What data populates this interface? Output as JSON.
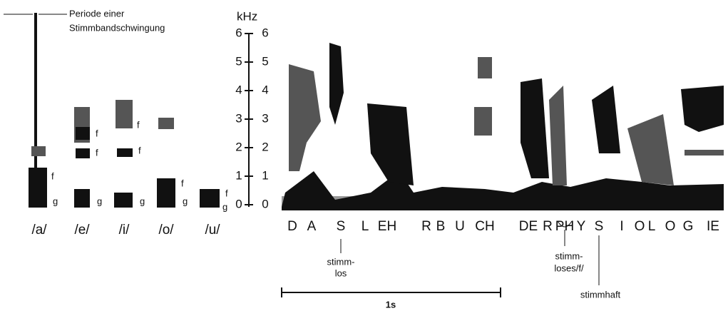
{
  "annotation": {
    "lines": [
      "Periode einer",
      "Stimmbandschwingung"
    ]
  },
  "axis": {
    "unit": "kHz",
    "ticks": [
      "0",
      "1",
      "2",
      "3",
      "4",
      "5",
      "6"
    ]
  },
  "vowels": {
    "labels": [
      "/a/",
      "/e/",
      "/i/",
      "/o/",
      "/u/"
    ],
    "formant": "f",
    "fundamental": "g"
  },
  "utterance": {
    "segments": [
      "D",
      "A",
      "S",
      "L",
      "EH",
      "R",
      "B",
      "U",
      "CH",
      "DE",
      "R",
      "PH",
      "Y",
      "S",
      "I",
      "O",
      "L",
      "O",
      "G",
      "IE"
    ]
  },
  "notes": {
    "voiceless_s": [
      "stimm-",
      "los"
    ],
    "voiceless_f": [
      "stimm-",
      "loses/f/"
    ],
    "voiced_s": "stimmhaft",
    "scale": "1s"
  }
}
